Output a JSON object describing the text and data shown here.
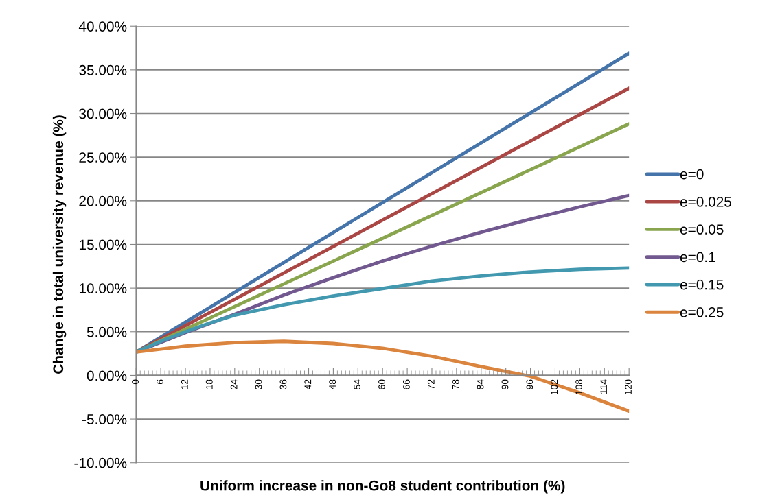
{
  "chart_data": {
    "type": "line",
    "xlabel": "Uniform increase in non-Go8 student contribution (%)",
    "ylabel": "Change in total university revenue (%)",
    "xlim": [
      0,
      120
    ],
    "xticks": [
      0,
      6,
      12,
      18,
      24,
      30,
      36,
      42,
      48,
      54,
      60,
      66,
      72,
      78,
      84,
      90,
      96,
      102,
      108,
      114,
      120
    ],
    "ylim": [
      -10,
      40
    ],
    "yticks": [
      {
        "value": -10,
        "label": "-10.00%"
      },
      {
        "value": -5,
        "label": "-5.00%"
      },
      {
        "value": 0,
        "label": "0.00%"
      },
      {
        "value": 5,
        "label": "5.00%"
      },
      {
        "value": 10,
        "label": "10.00%"
      },
      {
        "value": 15,
        "label": "15.00%"
      },
      {
        "value": 20,
        "label": "20.00%"
      },
      {
        "value": 25,
        "label": "25.00%"
      },
      {
        "value": 30,
        "label": "30.00%"
      },
      {
        "value": 35,
        "label": "35.00%"
      },
      {
        "value": 40,
        "label": "40.00%"
      }
    ],
    "grid": "y",
    "legend": "right",
    "marker": "none",
    "line_style": "solid",
    "series": [
      {
        "name": "e=0",
        "color": "#4574aa",
        "x": [
          0,
          60,
          120
        ],
        "values": [
          2.67,
          19.8,
          36.9
        ]
      },
      {
        "name": "e=0.025",
        "color": "#aa4643",
        "x": [
          0,
          60,
          120
        ],
        "values": [
          2.67,
          17.8,
          32.9
        ]
      },
      {
        "name": "e=0.05",
        "color": "#89a54e",
        "x": [
          0,
          60,
          120
        ],
        "values": [
          2.67,
          15.7,
          28.8
        ]
      },
      {
        "name": "e=0.1",
        "color": "#71588f",
        "x": [
          0,
          12,
          24,
          36,
          48,
          60,
          72,
          84,
          96,
          108,
          120
        ],
        "values": [
          2.67,
          4.9,
          7.0,
          9.2,
          11.2,
          13.1,
          14.8,
          16.4,
          17.9,
          19.3,
          20.6
        ]
      },
      {
        "name": "e=0.15",
        "color": "#4198af",
        "x": [
          0,
          6,
          12,
          18,
          24,
          36,
          48,
          60,
          72,
          84,
          96,
          108,
          120
        ],
        "values": [
          2.67,
          3.9,
          5.0,
          6.0,
          6.9,
          8.1,
          9.1,
          9.95,
          10.8,
          11.4,
          11.85,
          12.15,
          12.3
        ]
      },
      {
        "name": "e=0.25",
        "color": "#db843d",
        "x": [
          0,
          12,
          24,
          36,
          48,
          60,
          72,
          84,
          96,
          108,
          120
        ],
        "values": [
          2.67,
          3.35,
          3.75,
          3.9,
          3.65,
          3.1,
          2.2,
          1.0,
          -0.1,
          -2.0,
          -4.1
        ]
      }
    ]
  }
}
